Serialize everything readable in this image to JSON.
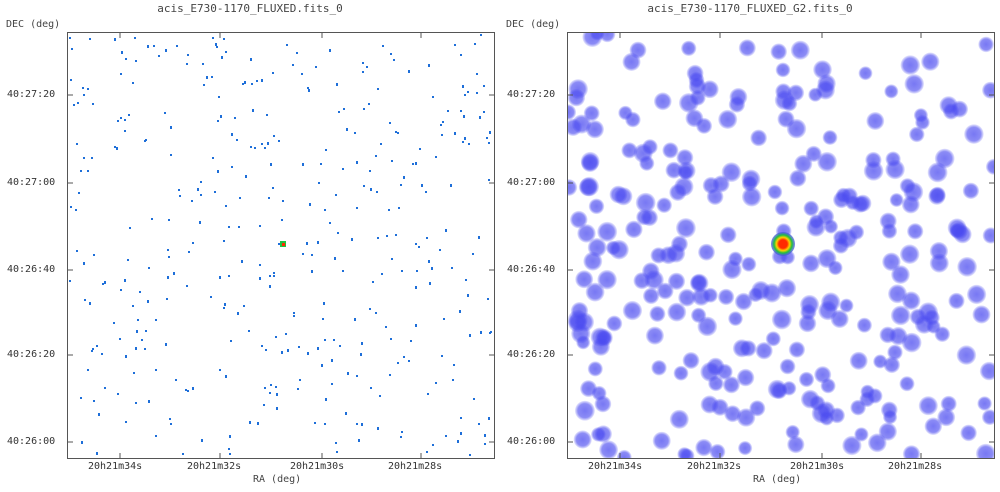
{
  "panels": [
    {
      "title": "acis_E730-1170_FLUXED.fits_0",
      "dec_axis_label": "DEC (deg)",
      "ra_axis_label": "RA (deg)",
      "y_ticks": [
        "40:27:20",
        "40:27:00",
        "40:26:40",
        "40:26:20",
        "40:26:00"
      ],
      "x_ticks": [
        "20h21m34s",
        "20h21m32s",
        "20h21m30s",
        "20h21m28s"
      ],
      "image_style": "sparse-pixels"
    },
    {
      "title": "acis_E730-1170_FLUXED_G2.fits_0",
      "dec_axis_label": "DEC (deg)",
      "ra_axis_label": "RA (deg)",
      "y_ticks": [
        "40:27:20",
        "40:27:00",
        "40:26:40",
        "40:26:20",
        "40:26:00"
      ],
      "x_ticks": [
        "20h21m34s",
        "20h21m32s",
        "20h21m30s",
        "20h21m28s"
      ],
      "image_style": "smoothed-blobs"
    }
  ],
  "colors": {
    "pixel": "#1e6fd9",
    "blob": "#4a4af0",
    "source_core": "#ff2a00",
    "source_ring": "#ffd200",
    "source_halo": "#20c040"
  }
}
